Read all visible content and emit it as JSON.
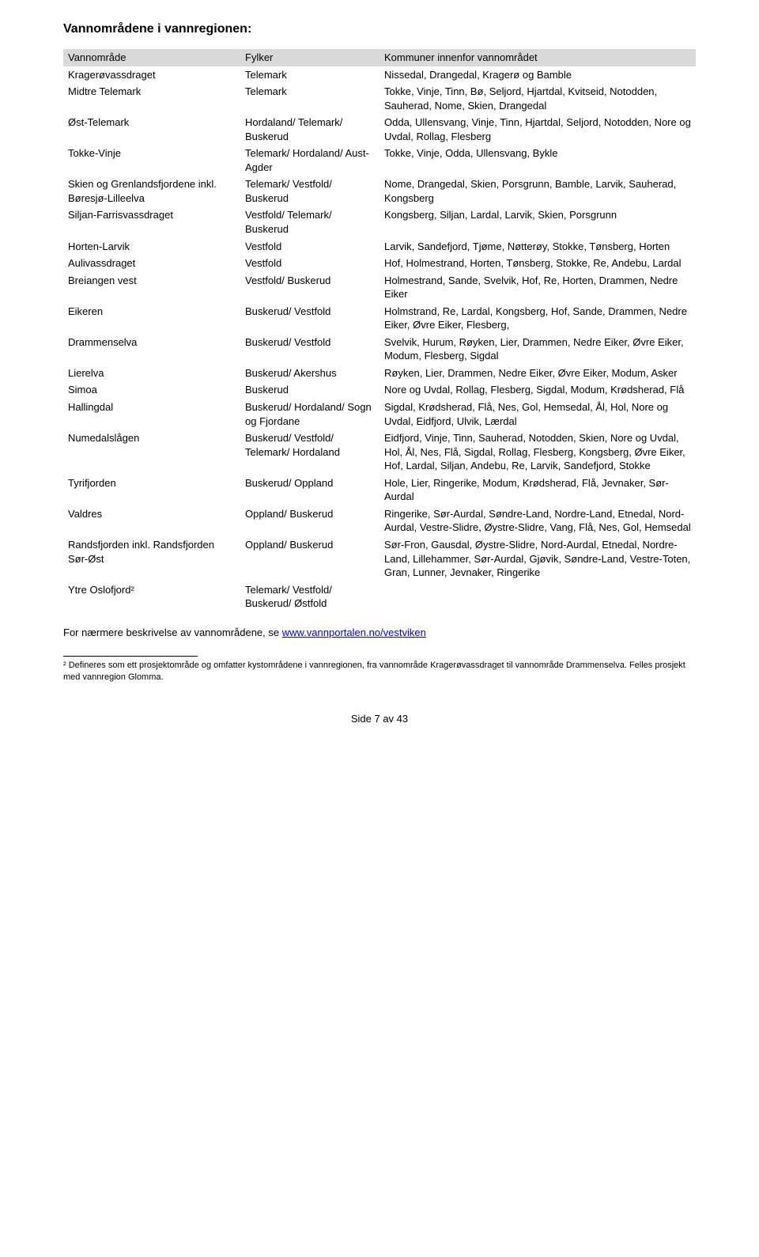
{
  "heading": "Vannområdene i vannregionen:",
  "columns": [
    "Vannområde",
    "Fylker",
    "Kommuner innenfor vannområdet"
  ],
  "rows": [
    [
      "Kragerøvassdraget",
      "Telemark",
      "Nissedal, Drangedal, Kragerø og Bamble"
    ],
    [
      "Midtre Telemark",
      "Telemark",
      "Tokke, Vinje, Tinn, Bø, Seljord, Hjartdal, Kvitseid, Notodden, Sauherad, Nome, Skien, Drangedal"
    ],
    [
      "Øst-Telemark",
      "Hordaland/ Telemark/ Buskerud",
      "Odda, Ullensvang, Vinje, Tinn, Hjartdal, Seljord, Notodden, Nore og Uvdal, Rollag, Flesberg"
    ],
    [
      "Tokke-Vinje",
      "Telemark/ Hordaland/ Aust-Agder",
      "Tokke, Vinje, Odda, Ullensvang, Bykle"
    ],
    [
      "Skien og Grenlandsfjordene inkl. Børesjø-Lilleelva",
      "Telemark/ Vestfold/ Buskerud",
      "Nome, Drangedal, Skien, Porsgrunn, Bamble, Larvik, Sauherad, Kongsberg"
    ],
    [
      "Siljan-Farrisvassdraget",
      "Vestfold/ Telemark/ Buskerud",
      "Kongsberg, Siljan, Lardal, Larvik, Skien, Porsgrunn"
    ],
    [
      "Horten-Larvik",
      "Vestfold",
      "Larvik, Sandefjord, Tjøme, Nøtterøy, Stokke, Tønsberg, Horten"
    ],
    [
      "Aulivassdraget",
      "Vestfold",
      "Hof, Holmestrand, Horten, Tønsberg, Stokke, Re, Andebu, Lardal"
    ],
    [
      "Breiangen vest",
      "Vestfold/ Buskerud",
      "Holmestrand, Sande, Svelvik, Hof, Re, Horten, Drammen, Nedre Eiker"
    ],
    [
      "Eikeren",
      "Buskerud/ Vestfold",
      "Holmstrand, Re, Lardal, Kongsberg, Hof, Sande, Drammen, Nedre Eiker, Øvre Eiker, Flesberg,"
    ],
    [
      "Drammenselva",
      "Buskerud/ Vestfold",
      "Svelvik, Hurum, Røyken, Lier, Drammen, Nedre Eiker, Øvre Eiker, Modum, Flesberg, Sigdal"
    ],
    [
      "Lierelva",
      "Buskerud/ Akershus",
      "Røyken, Lier, Drammen, Nedre Eiker, Øvre Eiker, Modum, Asker"
    ],
    [
      "Simoa",
      "Buskerud",
      "Nore og Uvdal, Rollag, Flesberg, Sigdal, Modum, Krødsherad, Flå"
    ],
    [
      "Hallingdal",
      "Buskerud/ Hordaland/ Sogn og Fjordane",
      "Sigdal, Krødsherad, Flå, Nes, Gol, Hemsedal, Ål, Hol, Nore og Uvdal, Eidfjord, Ulvik, Lærdal"
    ],
    [
      "Numedalslågen",
      "Buskerud/ Vestfold/ Telemark/ Hordaland",
      "Eidfjord, Vinje, Tinn, Sauherad, Notodden, Skien, Nore og Uvdal, Hol, Ål, Nes, Flå, Sigdal, Rollag, Flesberg, Kongsberg, Øvre Eiker, Hof, Lardal, Siljan, Andebu, Re, Larvik, Sandefjord, Stokke"
    ],
    [
      "Tyrifjorden",
      "Buskerud/ Oppland",
      "Hole, Lier, Ringerike, Modum, Krødsherad, Flå, Jevnaker, Sør-Aurdal"
    ],
    [
      "Valdres",
      "Oppland/ Buskerud",
      "Ringerike, Sør-Aurdal, Søndre-Land, Nordre-Land, Etnedal, Nord-Aurdal, Vestre-Slidre, Øystre-Slidre, Vang, Flå, Nes, Gol, Hemsedal"
    ],
    [
      "Randsfjorden inkl. Randsfjorden Sør-Øst",
      "Oppland/ Buskerud",
      "Sør-Fron, Gausdal, Øystre-Slidre, Nord-Aurdal, Etnedal, Nordre-Land, Lillehammer, Sør-Aurdal, Gjøvik, Søndre-Land, Vestre-Toten, Gran, Lunner, Jevnaker, Ringerike"
    ],
    [
      "Ytre Oslofjord²",
      "Telemark/ Vestfold/ Buskerud/ Østfold",
      ""
    ]
  ],
  "below_text_prefix": "For nærmere beskrivelse av vannområdene, se ",
  "below_text_link": "www.vannportalen.no/vestviken",
  "footnote": "² Defineres som ett prosjektområde og omfatter kystområdene i vannregionen, fra vannområde Kragerøvassdraget til vannområde Drammenselva. Felles prosjekt med vannregion Glomma.",
  "page_footer": "Side 7 av 43",
  "colors": {
    "header_bg": "#d9d9d9",
    "link": "#0000ee",
    "text": "#000000",
    "bg": "#ffffff"
  }
}
